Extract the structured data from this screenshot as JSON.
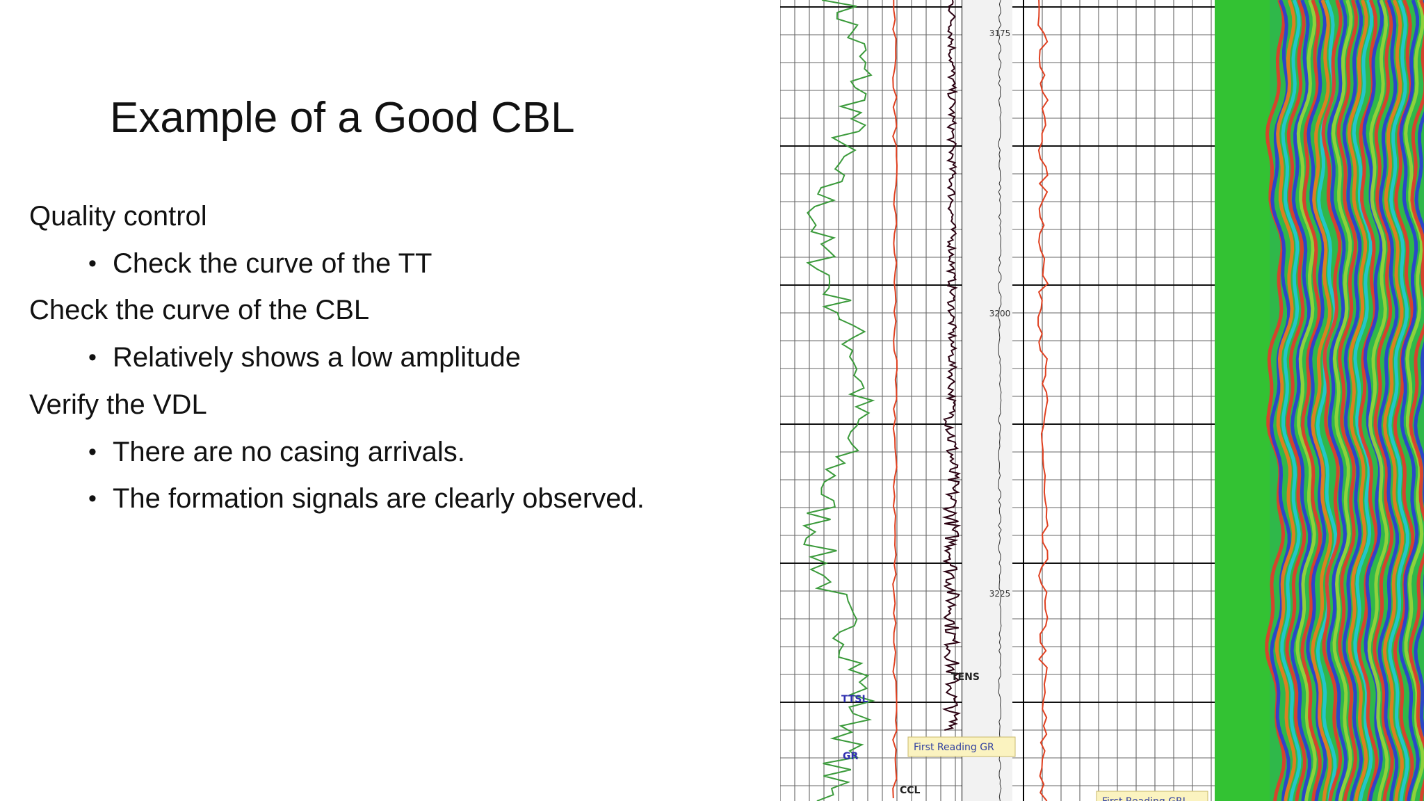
{
  "title": "Example of a Good CBL",
  "items": [
    {
      "text": "Quality control",
      "bullets": [
        "Check the curve of the TT"
      ]
    },
    {
      "text": "Check the curve of the CBL",
      "bullets": [
        "Relatively shows a low amplitude"
      ]
    },
    {
      "text": "Verify the VDL",
      "bullets": [
        "There are no casing arrivals.",
        "The formation signals are clearly observed."
      ]
    }
  ],
  "log": {
    "depth_labels": [
      "3175",
      "3200",
      "3225"
    ],
    "curve_labels": [
      "TENS",
      "TTSL",
      "GR",
      "CCL"
    ],
    "annotations": [
      "First Reading GR",
      "First Reading GRL"
    ]
  }
}
